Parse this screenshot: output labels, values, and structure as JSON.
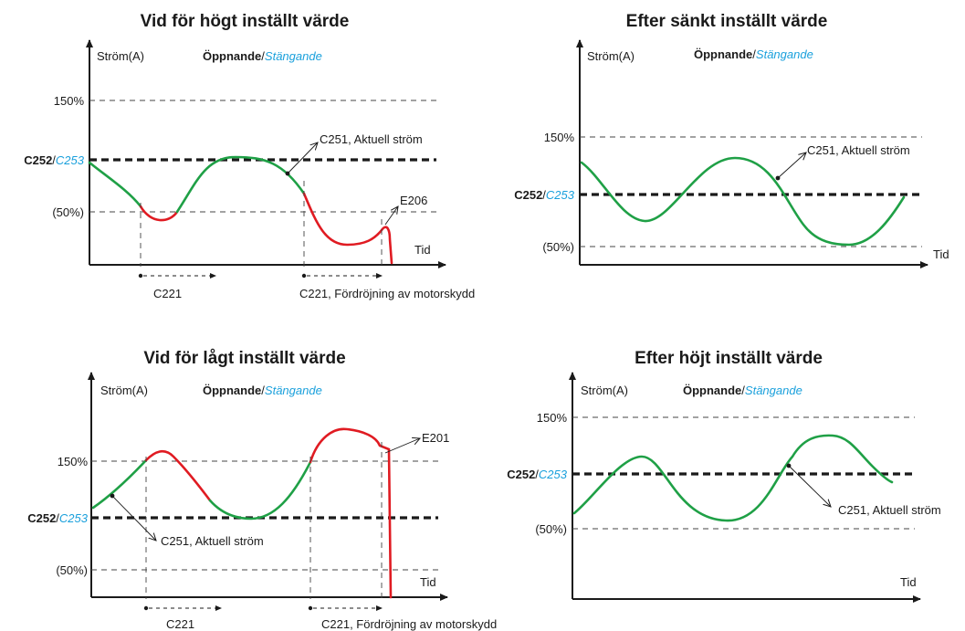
{
  "colors": {
    "open": "#1fa046",
    "close": "#e01b22",
    "closing_text": "#1aa0dc",
    "ink": "#1a1a1a"
  },
  "panels": {
    "p1": {
      "title": "Vid för högt inställt värde",
      "ylabel": "Ström(A)",
      "legend_open": "Öppnande",
      "legend_sep": "/",
      "legend_close": "Stängande",
      "level_150": "150%",
      "level_set_bold": "C252",
      "level_set_sep": "/",
      "level_set_ital": "C253",
      "level_50": "(50%)",
      "xlabel": "Tid",
      "annot_current": "C251, Aktuell ström",
      "annot_error": "E206",
      "timer1": "C221",
      "timer2": "C221, Fördröjning av motorskydd"
    },
    "p2": {
      "title": "Efter sänkt inställt värde",
      "ylabel": "Ström(A)",
      "legend_open": "Öppnande",
      "legend_sep": "/",
      "legend_close": "Stängande",
      "level_150": "150%",
      "level_set_bold": "C252",
      "level_set_sep": "/",
      "level_set_ital": "C253",
      "level_50": "(50%)",
      "xlabel": "Tid",
      "annot_current": "C251, Aktuell ström"
    },
    "p3": {
      "title": "Vid för lågt inställt värde",
      "ylabel": "Ström(A)",
      "legend_open": "Öppnande",
      "legend_sep": "/",
      "legend_close": "Stängande",
      "level_150": "150%",
      "level_set_bold": "C252",
      "level_set_sep": "/",
      "level_set_ital": "C253",
      "level_50": "(50%)",
      "xlabel": "Tid",
      "annot_current": "C251, Aktuell ström",
      "annot_error": "E201",
      "timer1": "C221",
      "timer2": "C221, Fördröjning av motorskydd"
    },
    "p4": {
      "title": "Efter höjt inställt värde",
      "ylabel": "Ström(A)",
      "legend_open": "Öppnande",
      "legend_sep": "/",
      "legend_close": "Stängande",
      "level_150": "150%",
      "level_set_bold": "C252",
      "level_set_sep": "/",
      "level_set_ital": "C253",
      "level_50": "(50%)",
      "xlabel": "Tid",
      "annot_current": "C251, Aktuell ström"
    }
  }
}
